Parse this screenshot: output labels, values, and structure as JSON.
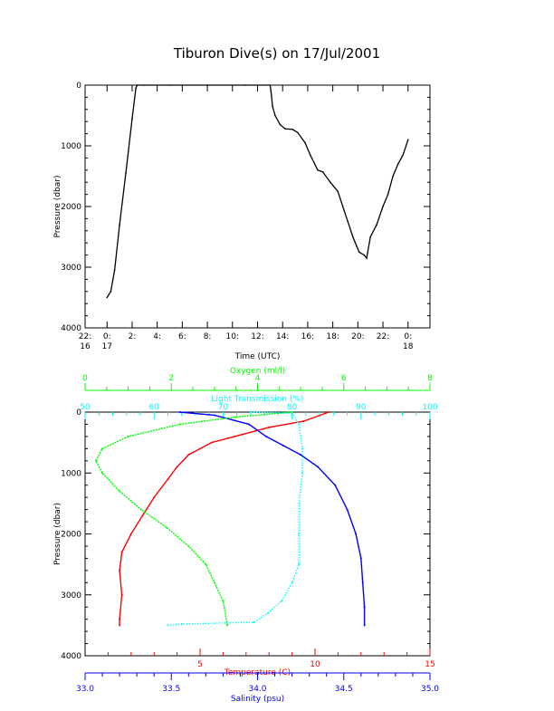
{
  "title": "Tiburon Dive(s) on 17/Jul/2001",
  "colors": {
    "axis": "#000000",
    "temperature": "#ff0000",
    "salinity": "#0000ff",
    "oxygen": "#00ff00",
    "transmission": "#00ffff",
    "track": "#000000",
    "track_highlight": "#cc0000"
  },
  "chart_data": [
    {
      "id": "time_series",
      "type": "line",
      "title": "Tiburon Dive(s) on 17/Jul/2001",
      "xlabel": "Time (UTC)",
      "ylabel": "Pressure (dbar)",
      "x_unit": "hours since 17 Jul 2001 00:00 UTC",
      "xlim": [
        -1.75,
        25.75
      ],
      "ylim": [
        4000,
        0
      ],
      "y_ticks": [
        0,
        1000,
        2000,
        3000,
        4000
      ],
      "x_ticks": [
        {
          "x": -1.75,
          "l1": "22:",
          "l2": "16"
        },
        {
          "x": 0,
          "l1": "0:",
          "l2": "17"
        },
        {
          "x": 2,
          "l1": "2:",
          "l2": ""
        },
        {
          "x": 4,
          "l1": "4:",
          "l2": ""
        },
        {
          "x": 6,
          "l1": "6:",
          "l2": ""
        },
        {
          "x": 8,
          "l1": "8:",
          "l2": ""
        },
        {
          "x": 10,
          "l1": "10:",
          "l2": ""
        },
        {
          "x": 12,
          "l1": "12:",
          "l2": ""
        },
        {
          "x": 14,
          "l1": "14:",
          "l2": ""
        },
        {
          "x": 16,
          "l1": "16:",
          "l2": ""
        },
        {
          "x": 18,
          "l1": "18:",
          "l2": ""
        },
        {
          "x": 20,
          "l1": "20:",
          "l2": ""
        },
        {
          "x": 22,
          "l1": "22:",
          "l2": ""
        },
        {
          "x": 24,
          "l1": "0:",
          "l2": "18"
        }
      ],
      "series": [
        {
          "name": "",
          "x": [
            0.0,
            0.3,
            0.6,
            1.0,
            1.5,
            2.0,
            2.3,
            2.4,
            3.0,
            5.0,
            8.0,
            11.0,
            13.0,
            13.1,
            13.2,
            13.4,
            13.8,
            14.2,
            14.8,
            15.2,
            15.8,
            16.2,
            16.8,
            17.2,
            17.8,
            18.4,
            18.8,
            19.2,
            19.6,
            20.1,
            20.5,
            20.7,
            21.0,
            21.5,
            22.0,
            22.4,
            22.8,
            23.2,
            23.6,
            24.0
          ],
          "y": [
            3500,
            3400,
            3050,
            2300,
            1450,
            550,
            50,
            0,
            0,
            0,
            0,
            0,
            0,
            150,
            350,
            500,
            650,
            720,
            730,
            780,
            950,
            1150,
            1400,
            1430,
            1600,
            1750,
            2000,
            2250,
            2500,
            2750,
            2800,
            2850,
            2500,
            2300,
            2000,
            1800,
            1500,
            1300,
            1150,
            900
          ]
        }
      ]
    },
    {
      "id": "profiles",
      "type": "line",
      "ylabel": "Pressure (dbar)",
      "ylim": [
        4000,
        0
      ],
      "y_ticks": [
        0,
        1000,
        2000,
        3000,
        4000
      ],
      "axes": {
        "temperature": {
          "label": "Temperature (C)",
          "lim": [
            0,
            15
          ],
          "ticks": [
            5,
            10,
            15
          ],
          "position": "bottom"
        },
        "salinity": {
          "label": "Salinity (psu)",
          "lim": [
            33.0,
            35.0
          ],
          "ticks": [
            33.0,
            33.5,
            34.0,
            34.5,
            35.0
          ],
          "position": "bottom-outer"
        },
        "oxygen": {
          "label": "Oxygen (ml/l)",
          "lim": [
            0,
            8
          ],
          "ticks": [
            0,
            2,
            4,
            6,
            8
          ],
          "position": "top-outer"
        },
        "transmission": {
          "label": "Light Transmission (%)",
          "lim": [
            50,
            100
          ],
          "ticks": [
            50,
            60,
            70,
            80,
            90,
            100
          ],
          "position": "top"
        }
      },
      "series": [
        {
          "name": "Temperature (C)",
          "axis": "temperature",
          "x": [
            10.6,
            9.5,
            8.0,
            6.5,
            5.5,
            4.5,
            4.0,
            3.6,
            3.0,
            2.5,
            2.0,
            1.6,
            1.5,
            1.6,
            1.5,
            1.5
          ],
          "y": [
            0,
            150,
            250,
            400,
            500,
            700,
            900,
            1100,
            1400,
            1700,
            2000,
            2300,
            2600,
            3000,
            3400,
            3500
          ]
        },
        {
          "name": "Salinity (psu)",
          "axis": "salinity",
          "x": [
            33.55,
            33.75,
            33.95,
            34.05,
            34.15,
            34.25,
            34.35,
            34.45,
            34.52,
            34.57,
            34.6,
            34.61,
            34.62,
            34.62
          ],
          "y": [
            0,
            50,
            200,
            400,
            550,
            700,
            900,
            1200,
            1600,
            2000,
            2400,
            2800,
            3200,
            3500
          ]
        },
        {
          "name": "Oxygen (ml/l)",
          "axis": "oxygen",
          "x": [
            4.8,
            3.5,
            2.2,
            1.0,
            0.4,
            0.25,
            0.4,
            0.8,
            1.3,
            1.9,
            2.4,
            2.8,
            3.0,
            3.2,
            3.3
          ],
          "y": [
            0,
            80,
            200,
            400,
            600,
            800,
            1000,
            1300,
            1600,
            1900,
            2200,
            2500,
            2800,
            3100,
            3500
          ]
        },
        {
          "name": "Light Transmission (%)",
          "axis": "transmission",
          "x": [
            74,
            80,
            81,
            81.5,
            81.5,
            81.0,
            81.0,
            81.0,
            80.0,
            78.5,
            76.5,
            74.5,
            64,
            62
          ],
          "y": [
            0,
            20,
            200,
            600,
            1000,
            1500,
            2000,
            2500,
            2800,
            3100,
            3300,
            3450,
            3480,
            3500
          ]
        }
      ]
    }
  ]
}
